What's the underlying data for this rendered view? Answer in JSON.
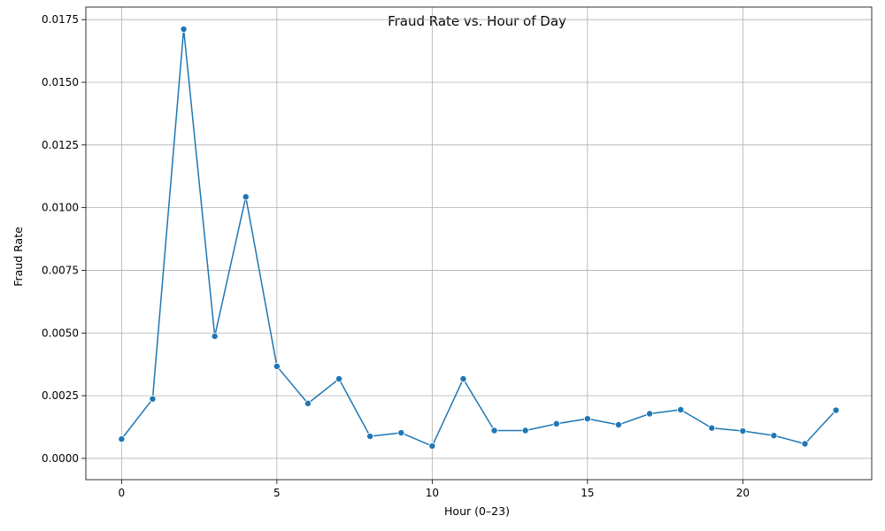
{
  "chart_data": {
    "type": "line",
    "title": "Fraud Rate vs. Hour of Day",
    "xlabel": "Hour (0–23)",
    "ylabel": "Fraud Rate",
    "xlim": [
      -1.15,
      24.15
    ],
    "ylim": [
      -0.00085,
      0.018
    ],
    "xticks": [
      0,
      5,
      10,
      15,
      20
    ],
    "xtick_labels": [
      "0",
      "5",
      "10",
      "15",
      "20"
    ],
    "yticks": [
      0,
      0.0025,
      0.005,
      0.0075,
      0.01,
      0.0125,
      0.015,
      0.0175
    ],
    "ytick_labels": [
      "0.0000",
      "0.0025",
      "0.0050",
      "0.0075",
      "0.0100",
      "0.0125",
      "0.0150",
      "0.0175"
    ],
    "grid": true,
    "legend": "none",
    "line_color": "#1f77b4",
    "series": [
      {
        "x": [
          0,
          1,
          2,
          3,
          4,
          5,
          6,
          7,
          8,
          9,
          10,
          11,
          12,
          13,
          14,
          15,
          16,
          17,
          18,
          19,
          20,
          21,
          22,
          23
        ],
        "values": [
          0.00077,
          0.00237,
          0.01712,
          0.00487,
          0.01043,
          0.00367,
          0.00219,
          0.00317,
          0.00088,
          0.00102,
          0.00049,
          0.00317,
          0.00111,
          0.00111,
          0.00138,
          0.00158,
          0.00134,
          0.00178,
          0.00194,
          0.00121,
          0.00109,
          0.00091,
          0.00058,
          0.00192
        ]
      }
    ]
  }
}
